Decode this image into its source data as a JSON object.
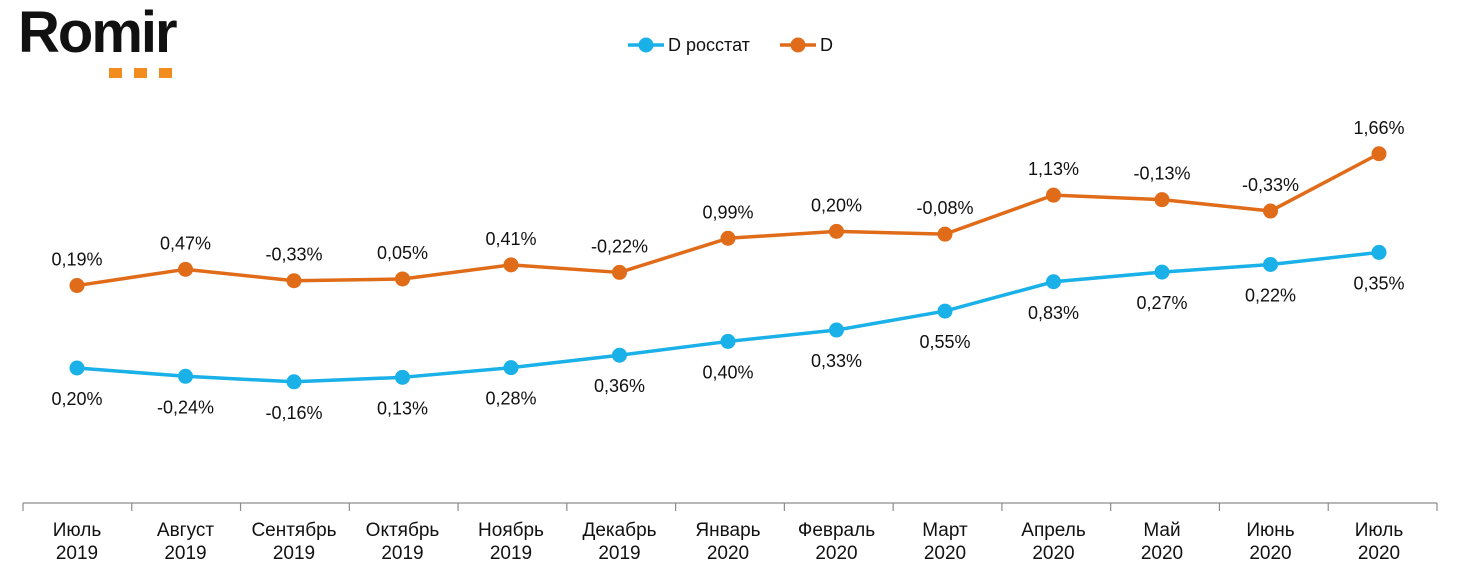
{
  "logo": {
    "text": "Romir",
    "accent_color": "#F28C1E"
  },
  "chart_data": {
    "type": "line",
    "title": "",
    "xlabel": "",
    "ylabel": "",
    "categories": [
      [
        "Июль",
        "2019"
      ],
      [
        "Август",
        "2019"
      ],
      [
        "Сентябрь",
        "2019"
      ],
      [
        "Октябрь",
        "2019"
      ],
      [
        "Ноябрь",
        "2019"
      ],
      [
        "Декабрь",
        "2019"
      ],
      [
        "Январь",
        "2020"
      ],
      [
        "Февраль",
        "2020"
      ],
      [
        "Март",
        "2020"
      ],
      [
        "Апрель",
        "2020"
      ],
      [
        "Май",
        "2020"
      ],
      [
        "Июнь",
        "2020"
      ],
      [
        "Июль",
        "2020"
      ]
    ],
    "legend_position": "top-center",
    "grid": false,
    "series": [
      {
        "name": "D росстат",
        "color": "#1AB0E8",
        "level": [
          0.2,
          -0.04,
          -0.2,
          -0.07,
          0.21,
          0.57,
          0.97,
          1.3,
          1.85,
          2.7,
          2.98,
          3.2,
          3.55
        ],
        "labels": [
          "0,20%",
          "-0,24%",
          "-0,16%",
          "0,13%",
          "0,28%",
          "0,36%",
          "0,40%",
          "0,33%",
          "0,55%",
          "0,83%",
          "0,27%",
          "0,22%",
          "0,35%"
        ],
        "label_position": "below"
      },
      {
        "name": "D",
        "color": "#E06C1A",
        "level": [
          2.59,
          3.06,
          2.73,
          2.78,
          3.19,
          2.97,
          3.96,
          4.16,
          4.08,
          5.21,
          5.08,
          4.75,
          6.41
        ],
        "labels": [
          "0,19%",
          "0,47%",
          "-0,33%",
          "0,05%",
          "0,41%",
          "-0,22%",
          "0,99%",
          "0,20%",
          "-0,08%",
          "1,13%",
          "-0,13%",
          "-0,33%",
          "1,66%"
        ],
        "label_position": "above"
      }
    ]
  }
}
